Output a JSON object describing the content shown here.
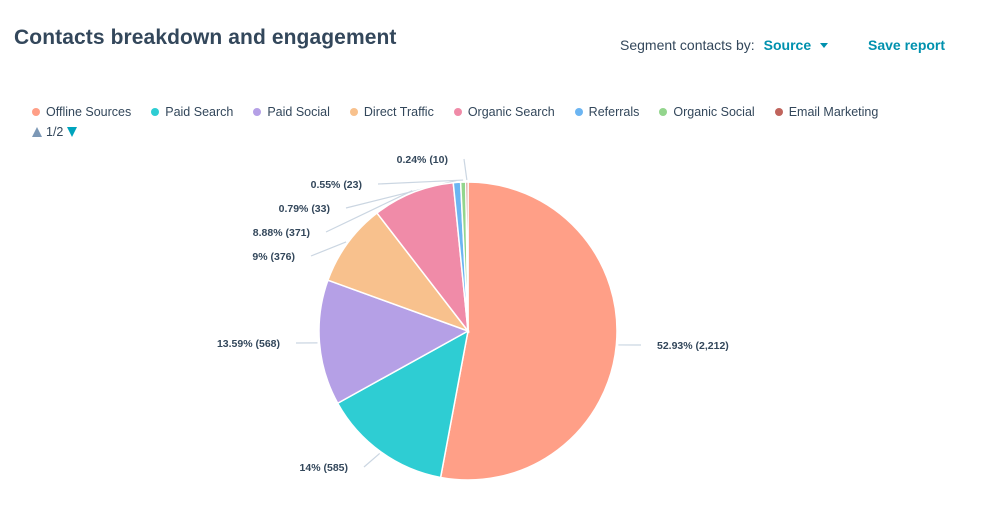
{
  "header": {
    "title": "Contacts breakdown and engagement",
    "segment_label": "Segment contacts by:",
    "segment_value": "Source",
    "save_label": "Save report"
  },
  "legend": {
    "items": [
      {
        "label": "Offline Sources",
        "color": "#ff9f87"
      },
      {
        "label": "Paid Search",
        "color": "#2ecdd3"
      },
      {
        "label": "Paid Social",
        "color": "#b5a0e6"
      },
      {
        "label": "Direct Traffic",
        "color": "#f8c18d"
      },
      {
        "label": "Organic Search",
        "color": "#f08ba8"
      },
      {
        "label": "Referrals",
        "color": "#6cb5f2"
      },
      {
        "label": "Organic Social",
        "color": "#93d58d"
      },
      {
        "label": "Email Marketing",
        "color": "#c0645c"
      }
    ],
    "page": "1/2"
  },
  "chart_data": {
    "type": "pie",
    "title": "",
    "categories": [
      "Offline Sources",
      "Paid Search",
      "Paid Social",
      "Direct Traffic",
      "Organic Search",
      "Referrals",
      "Organic Social",
      "Email Marketing"
    ],
    "values": [
      2212,
      585,
      568,
      376,
      371,
      33,
      23,
      10
    ],
    "labels": [
      "52.93% (2,212)",
      "14% (585)",
      "13.59% (568)",
      "9% (376)",
      "8.88% (371)",
      "0.79% (33)",
      "0.55% (23)",
      "0.24% (10)"
    ],
    "colors": [
      "#ff9f87",
      "#2ecdd3",
      "#b5a0e6",
      "#f8c18d",
      "#f08ba8",
      "#6cb5f2",
      "#93d58d",
      "#c0645c"
    ],
    "legend_position": "top-left"
  }
}
